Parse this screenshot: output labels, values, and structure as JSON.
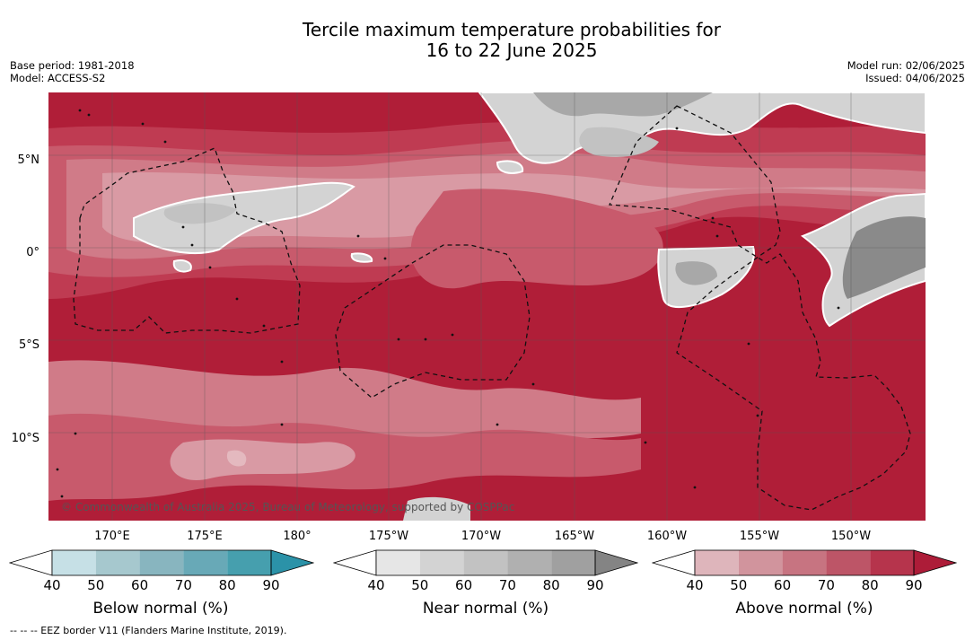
{
  "title_line1": "Tercile maximum temperature probabilities for",
  "title_line2": "16 to 22 June 2025",
  "meta": {
    "base_period": "Base period: 1981-2018",
    "model": "Model: ACCESS-S2",
    "model_run": "Model run: 02/06/2025",
    "issued": "Issued: 04/06/2025"
  },
  "map": {
    "lat_labels": [
      "5°N",
      "0°",
      "5°S",
      "10°S"
    ],
    "lon_labels": [
      "170°E",
      "175°E",
      "180°",
      "175°W",
      "170°W",
      "165°W",
      "160°W",
      "155°W",
      "150°W"
    ],
    "copyright": "© Commonwealth of Australia 2025, Bureau of Meteorology, supported by COSPPac",
    "colors": {
      "above_90": "#b01e38",
      "above_80": "#bf3b52",
      "above_70": "#c85a6c",
      "above_60": "#d07b88",
      "above_50": "#d99aa4",
      "above_40": "#e4b9bf",
      "near_50": "#d3d3d3",
      "near_60": "#c2c2c2",
      "near_70": "#a8a8a8",
      "near_90": "#8a8a8a"
    }
  },
  "colorbars": [
    {
      "title": "Below normal (%)",
      "ticks": [
        "40",
        "50",
        "60",
        "70",
        "80",
        "90"
      ],
      "colors": [
        "#c6e0e6",
        "#a6c8ce",
        "#88b5bf",
        "#68a9b7",
        "#469fae",
        "#2b92a8"
      ]
    },
    {
      "title": "Near normal (%)",
      "ticks": [
        "40",
        "50",
        "60",
        "70",
        "80",
        "90"
      ],
      "colors": [
        "#e6e6e6",
        "#d3d3d3",
        "#c2c2c2",
        "#b0b0b0",
        "#a0a0a0",
        "#848484"
      ]
    },
    {
      "title": "Above normal (%)",
      "ticks": [
        "40",
        "50",
        "60",
        "70",
        "80",
        "90"
      ],
      "colors": [
        "#deb5bb",
        "#d1949d",
        "#c77481",
        "#bd5567",
        "#b6344c",
        "#ad1c38"
      ]
    }
  ],
  "footer": "--  --  -- EEZ border V11 (Flanders Marine Institute, 2019)."
}
